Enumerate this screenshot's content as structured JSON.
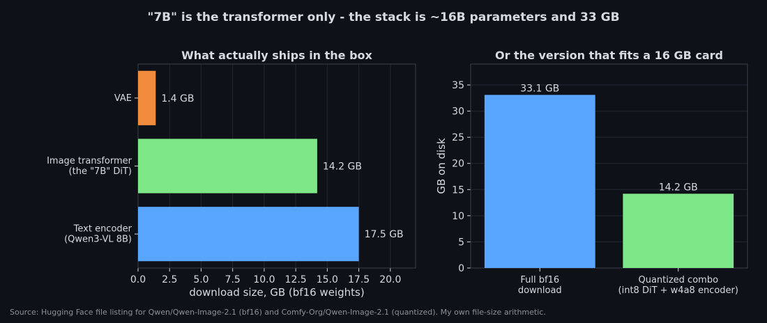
{
  "figure": {
    "title": "\"7B\" is the transformer only - the stack is ~16B parameters and 33 GB",
    "source": "Source: Hugging Face file listing for Qwen/Qwen-Image-2.1 (bf16) and Comfy-Org/Qwen-Image-2.1 (quantized). My own file-size arithmetic.",
    "background": "#0e1117"
  },
  "chart_data": [
    {
      "type": "bar",
      "orientation": "horizontal",
      "title": "What actually ships in the box",
      "xlabel": "download size, GB (bf16 weights)",
      "ylabel": "",
      "xlim": [
        0,
        22
      ],
      "xticks": [
        0,
        2.5,
        5,
        7.5,
        10,
        12.5,
        15,
        17.5,
        20
      ],
      "xtick_labels": [
        "0.0",
        "2.5",
        "5.0",
        "7.5",
        "10.0",
        "12.5",
        "15.0",
        "17.5",
        "20.0"
      ],
      "grid": "vertical",
      "bars": [
        {
          "label": [
            "VAE"
          ],
          "value": 1.4,
          "value_label": "1.4 GB",
          "color": "#f28c3c"
        },
        {
          "label": [
            "Image transformer",
            "(the \"7B\" DiT)"
          ],
          "value": 14.2,
          "value_label": "14.2 GB",
          "color": "#7ee787"
        },
        {
          "label": [
            "Text encoder",
            "(Qwen3-VL 8B)"
          ],
          "value": 17.5,
          "value_label": "17.5 GB",
          "color": "#58a6ff"
        }
      ]
    },
    {
      "type": "bar",
      "orientation": "vertical",
      "title": "Or the version that fits a 16 GB card",
      "xlabel": "",
      "ylabel": "GB on disk",
      "ylim": [
        0,
        39
      ],
      "yticks": [
        0,
        5,
        10,
        15,
        20,
        25,
        30,
        35
      ],
      "ytick_labels": [
        "0",
        "5",
        "10",
        "15",
        "20",
        "25",
        "30",
        "35"
      ],
      "grid": "horizontal",
      "bars": [
        {
          "label": [
            "Full bf16",
            "download"
          ],
          "value": 33.1,
          "value_label": "33.1 GB",
          "color": "#58a6ff"
        },
        {
          "label": [
            "Quantized combo",
            "(int8 DiT + w4a8 encoder)"
          ],
          "value": 14.2,
          "value_label": "14.2 GB",
          "color": "#7ee787"
        }
      ]
    }
  ]
}
